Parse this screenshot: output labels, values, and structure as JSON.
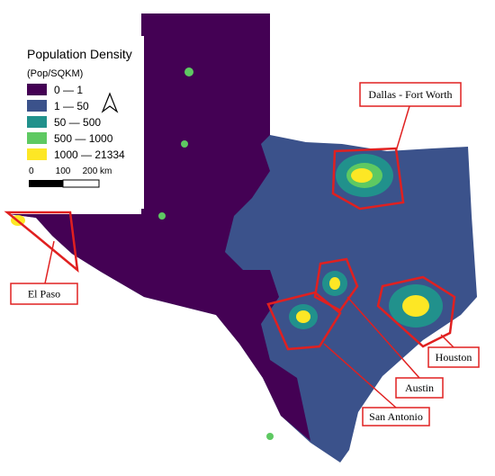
{
  "legend": {
    "title": "Population Density",
    "unit": "(Pop/SQKM)",
    "items": [
      {
        "label": "0 — 1",
        "color": "#440154"
      },
      {
        "label": "1 — 50",
        "color": "#3b528b"
      },
      {
        "label": "50 — 500",
        "color": "#21918c"
      },
      {
        "label": "500 — 1000",
        "color": "#5ec962"
      },
      {
        "label": "1000 — 21334",
        "color": "#fde725"
      }
    ]
  },
  "scale_bar": {
    "labels": [
      "0",
      "100",
      "200 km"
    ]
  },
  "regions": [
    {
      "label": "Dallas - Fort Worth"
    },
    {
      "label": "El Paso"
    },
    {
      "label": "Houston"
    },
    {
      "label": "Austin"
    },
    {
      "label": "San Antonio"
    }
  ]
}
